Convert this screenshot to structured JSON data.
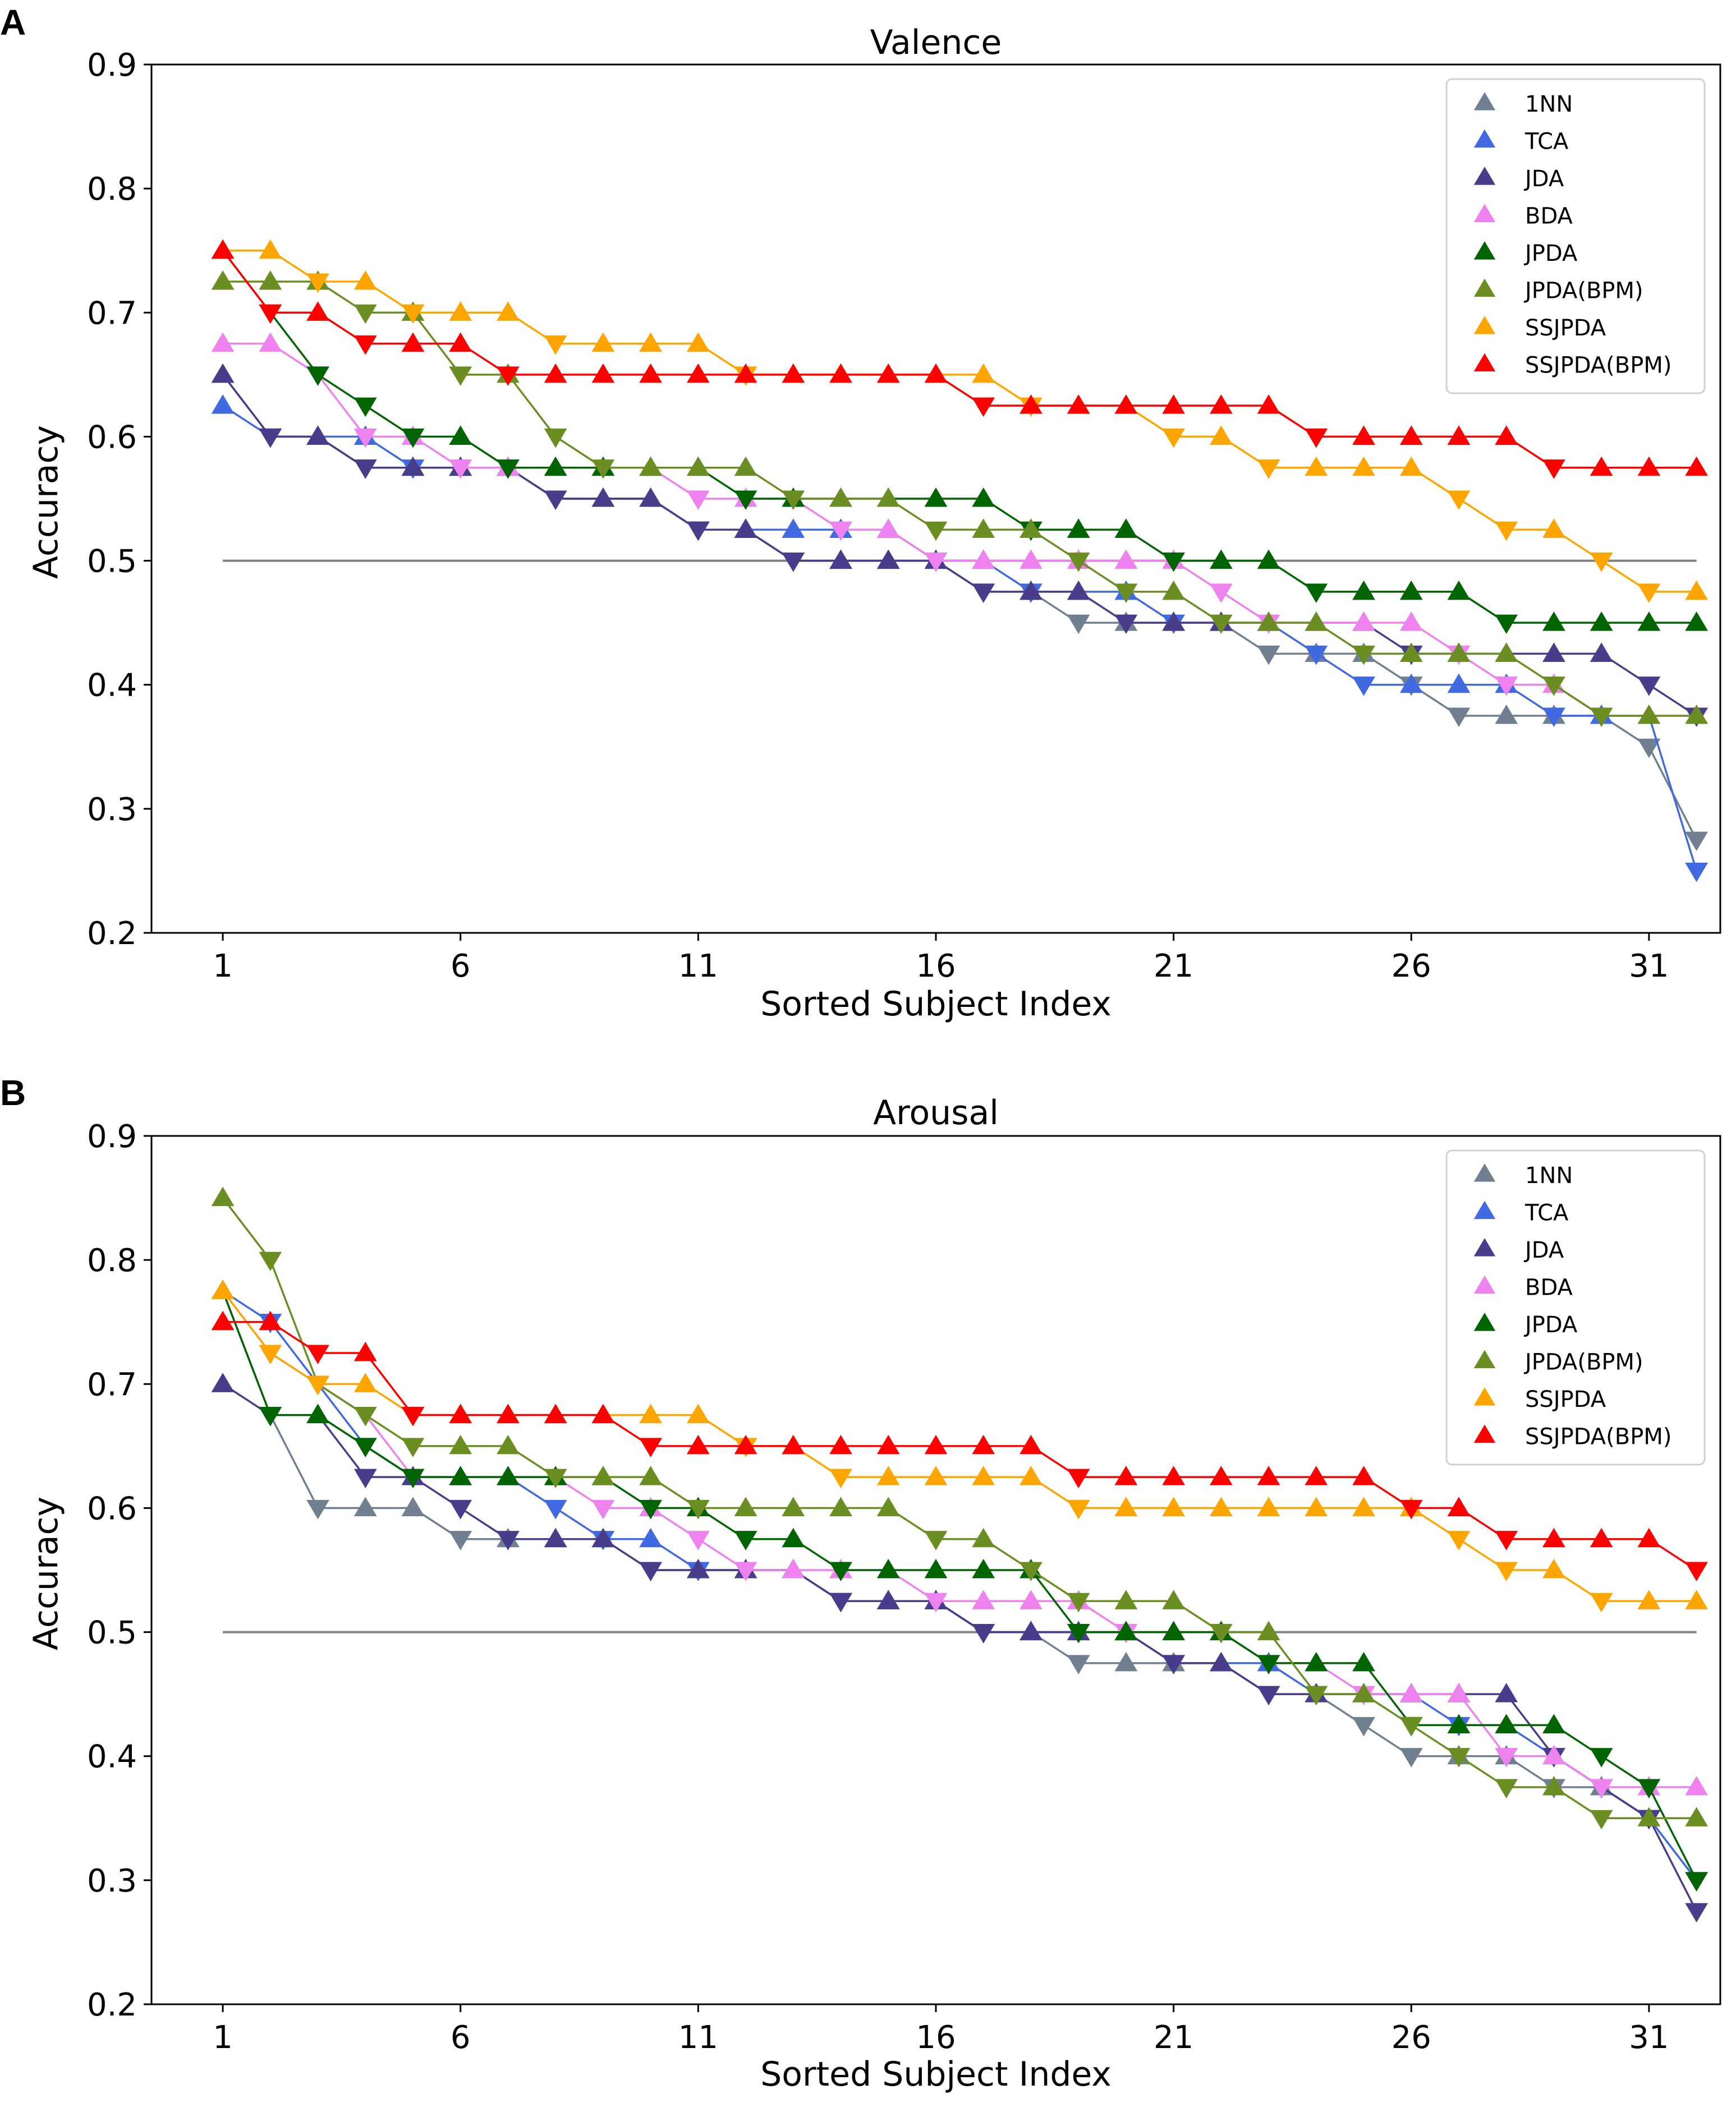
{
  "figure": {
    "panels": [
      "A",
      "B"
    ]
  },
  "legend_colors": {
    "1NN": "#708090",
    "TCA": "#4169e1",
    "JDA": "#483d8b",
    "BDA": "#ee82ee",
    "JPDA": "#006400",
    "JPDA(BPM)": "#6b8e23",
    "SSJPDA": "#ffa500",
    "SSJPDA(BPM)": "#ff0000"
  },
  "chart_data": [
    {
      "panel": "A",
      "type": "line",
      "title": "Valence",
      "xlabel": "Sorted Subject Index",
      "ylabel": "Accuracy",
      "xlim": [
        -0.5,
        32.5
      ],
      "ylim": [
        0.2,
        0.9
      ],
      "xticks": [
        1,
        6,
        11,
        16,
        21,
        26,
        31
      ],
      "yticks": [
        0.2,
        0.3,
        0.4,
        0.5,
        0.6,
        0.7,
        0.8,
        0.9
      ],
      "ytick_labels": [
        "0.2",
        "0.3",
        "0.4",
        "0.5",
        "0.6",
        "0.7",
        "0.8",
        "0.9"
      ],
      "reference_line": 0.5,
      "reference_line_range": [
        1,
        32
      ],
      "legend_position": "top-right",
      "x": [
        1,
        2,
        3,
        4,
        5,
        6,
        7,
        8,
        9,
        10,
        11,
        12,
        13,
        14,
        15,
        16,
        17,
        18,
        19,
        20,
        21,
        22,
        23,
        24,
        25,
        26,
        27,
        28,
        29,
        30,
        31,
        32
      ],
      "series": [
        {
          "name": "1NN",
          "values": [
            0.65,
            0.6,
            0.6,
            0.575,
            0.575,
            0.575,
            0.575,
            0.55,
            0.55,
            0.55,
            0.525,
            0.525,
            0.5,
            0.5,
            0.5,
            0.5,
            0.475,
            0.475,
            0.45,
            0.45,
            0.45,
            0.45,
            0.425,
            0.425,
            0.425,
            0.4,
            0.375,
            0.375,
            0.375,
            0.375,
            0.35,
            0.275
          ]
        },
        {
          "name": "TCA",
          "values": [
            0.625,
            0.6,
            0.6,
            0.6,
            0.575,
            0.575,
            0.575,
            0.55,
            0.55,
            0.55,
            0.525,
            0.525,
            0.525,
            0.525,
            0.525,
            0.5,
            0.5,
            0.475,
            0.475,
            0.475,
            0.45,
            0.45,
            0.45,
            0.425,
            0.4,
            0.4,
            0.4,
            0.4,
            0.375,
            0.375,
            0.375,
            0.25
          ]
        },
        {
          "name": "JDA",
          "values": [
            0.65,
            0.6,
            0.6,
            0.575,
            0.575,
            0.575,
            0.575,
            0.55,
            0.55,
            0.55,
            0.525,
            0.525,
            0.5,
            0.5,
            0.5,
            0.5,
            0.475,
            0.475,
            0.475,
            0.45,
            0.45,
            0.45,
            0.45,
            0.45,
            0.45,
            0.425,
            0.425,
            0.425,
            0.425,
            0.425,
            0.4,
            0.375
          ]
        },
        {
          "name": "BDA",
          "values": [
            0.675,
            0.675,
            0.65,
            0.6,
            0.6,
            0.575,
            0.575,
            0.575,
            0.575,
            0.575,
            0.55,
            0.55,
            0.55,
            0.525,
            0.525,
            0.5,
            0.5,
            0.5,
            0.5,
            0.5,
            0.5,
            0.475,
            0.45,
            0.45,
            0.45,
            0.45,
            0.425,
            0.4,
            0.4,
            0.375,
            0.375,
            0.375
          ]
        },
        {
          "name": "JPDA",
          "values": [
            0.75,
            0.7,
            0.65,
            0.625,
            0.6,
            0.6,
            0.575,
            0.575,
            0.575,
            0.575,
            0.575,
            0.55,
            0.55,
            0.55,
            0.55,
            0.55,
            0.55,
            0.525,
            0.525,
            0.525,
            0.5,
            0.5,
            0.5,
            0.475,
            0.475,
            0.475,
            0.475,
            0.45,
            0.45,
            0.45,
            0.45,
            0.45
          ]
        },
        {
          "name": "JPDA(BPM)",
          "values": [
            0.725,
            0.725,
            0.725,
            0.7,
            0.7,
            0.65,
            0.65,
            0.6,
            0.575,
            0.575,
            0.575,
            0.575,
            0.55,
            0.55,
            0.55,
            0.525,
            0.525,
            0.525,
            0.5,
            0.475,
            0.475,
            0.45,
            0.45,
            0.45,
            0.425,
            0.425,
            0.425,
            0.425,
            0.4,
            0.375,
            0.375,
            0.375
          ]
        },
        {
          "name": "SSJPDA",
          "values": [
            0.75,
            0.75,
            0.725,
            0.725,
            0.7,
            0.7,
            0.7,
            0.675,
            0.675,
            0.675,
            0.675,
            0.65,
            0.65,
            0.65,
            0.65,
            0.65,
            0.65,
            0.625,
            0.625,
            0.625,
            0.6,
            0.6,
            0.575,
            0.575,
            0.575,
            0.575,
            0.55,
            0.525,
            0.525,
            0.5,
            0.475,
            0.475
          ]
        },
        {
          "name": "SSJPDA(BPM)",
          "values": [
            0.75,
            0.7,
            0.7,
            0.675,
            0.675,
            0.675,
            0.65,
            0.65,
            0.65,
            0.65,
            0.65,
            0.65,
            0.65,
            0.65,
            0.65,
            0.65,
            0.625,
            0.625,
            0.625,
            0.625,
            0.625,
            0.625,
            0.625,
            0.6,
            0.6,
            0.6,
            0.6,
            0.6,
            0.575,
            0.575,
            0.575,
            0.575
          ]
        }
      ]
    },
    {
      "panel": "B",
      "type": "line",
      "title": "Arousal",
      "xlabel": "Sorted Subject Index",
      "ylabel": "Accuracy",
      "xlim": [
        -0.5,
        32.5
      ],
      "ylim": [
        0.2,
        0.9
      ],
      "xticks": [
        1,
        6,
        11,
        16,
        21,
        26,
        31
      ],
      "yticks": [
        0.2,
        0.3,
        0.4,
        0.5,
        0.6,
        0.7,
        0.8,
        0.9
      ],
      "ytick_labels": [
        "0.2",
        "0.3",
        "0.4",
        "0.5",
        "0.6",
        "0.7",
        "0.8",
        "0.9"
      ],
      "reference_line": 0.5,
      "reference_line_range": [
        1,
        32
      ],
      "legend_position": "top-right",
      "x": [
        1,
        2,
        3,
        4,
        5,
        6,
        7,
        8,
        9,
        10,
        11,
        12,
        13,
        14,
        15,
        16,
        17,
        18,
        19,
        20,
        21,
        22,
        23,
        24,
        25,
        26,
        27,
        28,
        29,
        30,
        31,
        32
      ],
      "series": [
        {
          "name": "1NN",
          "values": [
            0.775,
            0.675,
            0.6,
            0.6,
            0.6,
            0.575,
            0.575,
            0.575,
            0.575,
            0.55,
            0.55,
            0.55,
            0.55,
            0.525,
            0.525,
            0.525,
            0.5,
            0.5,
            0.475,
            0.475,
            0.475,
            0.475,
            0.45,
            0.45,
            0.425,
            0.4,
            0.4,
            0.4,
            0.375,
            0.375,
            0.35,
            0.3
          ]
        },
        {
          "name": "TCA",
          "values": [
            0.775,
            0.75,
            0.7,
            0.65,
            0.625,
            0.625,
            0.625,
            0.6,
            0.575,
            0.575,
            0.55,
            0.55,
            0.55,
            0.525,
            0.525,
            0.525,
            0.5,
            0.5,
            0.5,
            0.5,
            0.475,
            0.475,
            0.475,
            0.45,
            0.45,
            0.45,
            0.425,
            0.425,
            0.4,
            0.375,
            0.35,
            0.3
          ]
        },
        {
          "name": "JDA",
          "values": [
            0.7,
            0.675,
            0.675,
            0.625,
            0.625,
            0.6,
            0.575,
            0.575,
            0.575,
            0.55,
            0.55,
            0.55,
            0.55,
            0.525,
            0.525,
            0.525,
            0.5,
            0.5,
            0.5,
            0.5,
            0.475,
            0.475,
            0.45,
            0.45,
            0.45,
            0.45,
            0.45,
            0.45,
            0.4,
            0.375,
            0.35,
            0.275
          ]
        },
        {
          "name": "BDA",
          "values": [
            0.775,
            0.725,
            0.7,
            0.675,
            0.625,
            0.625,
            0.625,
            0.625,
            0.6,
            0.6,
            0.575,
            0.55,
            0.55,
            0.55,
            0.55,
            0.525,
            0.525,
            0.525,
            0.525,
            0.5,
            0.5,
            0.5,
            0.475,
            0.475,
            0.45,
            0.45,
            0.45,
            0.4,
            0.4,
            0.375,
            0.375,
            0.375
          ]
        },
        {
          "name": "JPDA",
          "values": [
            0.775,
            0.675,
            0.675,
            0.65,
            0.625,
            0.625,
            0.625,
            0.625,
            0.625,
            0.6,
            0.6,
            0.575,
            0.575,
            0.55,
            0.55,
            0.55,
            0.55,
            0.55,
            0.5,
            0.5,
            0.5,
            0.5,
            0.475,
            0.475,
            0.475,
            0.425,
            0.425,
            0.425,
            0.425,
            0.4,
            0.375,
            0.3
          ]
        },
        {
          "name": "JPDA(BPM)",
          "values": [
            0.85,
            0.8,
            0.7,
            0.675,
            0.65,
            0.65,
            0.65,
            0.625,
            0.625,
            0.625,
            0.6,
            0.6,
            0.6,
            0.6,
            0.6,
            0.575,
            0.575,
            0.55,
            0.525,
            0.525,
            0.525,
            0.5,
            0.5,
            0.45,
            0.45,
            0.425,
            0.4,
            0.375,
            0.375,
            0.35,
            0.35,
            0.35
          ]
        },
        {
          "name": "SSJPDA",
          "values": [
            0.775,
            0.725,
            0.7,
            0.7,
            0.675,
            0.675,
            0.675,
            0.675,
            0.675,
            0.675,
            0.675,
            0.65,
            0.65,
            0.625,
            0.625,
            0.625,
            0.625,
            0.625,
            0.6,
            0.6,
            0.6,
            0.6,
            0.6,
            0.6,
            0.6,
            0.6,
            0.575,
            0.55,
            0.55,
            0.525,
            0.525,
            0.525
          ]
        },
        {
          "name": "SSJPDA(BPM)",
          "values": [
            0.75,
            0.75,
            0.725,
            0.725,
            0.675,
            0.675,
            0.675,
            0.675,
            0.675,
            0.65,
            0.65,
            0.65,
            0.65,
            0.65,
            0.65,
            0.65,
            0.65,
            0.65,
            0.625,
            0.625,
            0.625,
            0.625,
            0.625,
            0.625,
            0.625,
            0.6,
            0.6,
            0.575,
            0.575,
            0.575,
            0.575,
            0.55
          ]
        }
      ]
    }
  ]
}
